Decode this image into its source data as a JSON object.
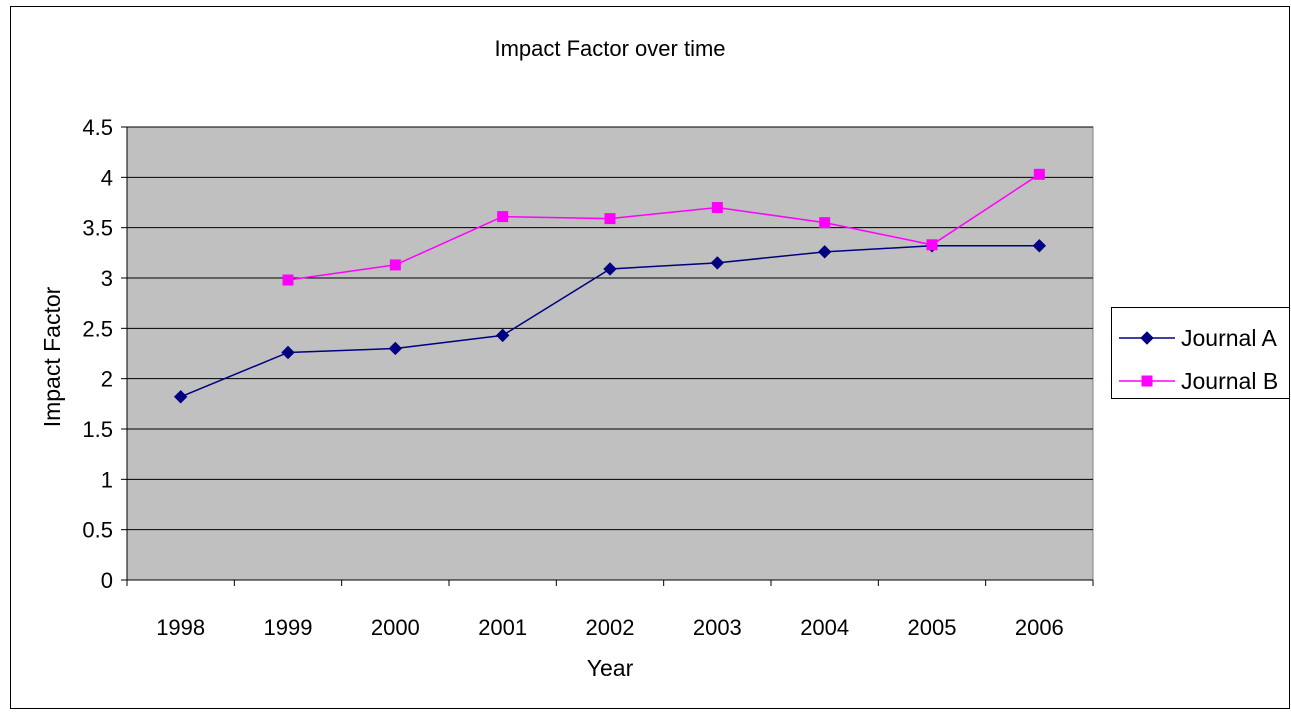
{
  "chart_data": {
    "type": "line",
    "title": "Impact Factor over time",
    "xlabel": "Year",
    "ylabel": "Impact Factor",
    "categories": [
      "1998",
      "1999",
      "2000",
      "2001",
      "2002",
      "2003",
      "2004",
      "2005",
      "2006"
    ],
    "series": [
      {
        "name": "Journal A",
        "color": "#000080",
        "marker": "diamond",
        "values": [
          1.82,
          2.26,
          2.3,
          2.43,
          3.09,
          3.15,
          3.26,
          3.32,
          3.32
        ]
      },
      {
        "name": "Journal B",
        "color": "#ff00ff",
        "marker": "square",
        "values": [
          null,
          2.98,
          3.13,
          3.61,
          3.59,
          3.7,
          3.55,
          3.33,
          4.03
        ]
      }
    ],
    "ylim": [
      0,
      4.5
    ],
    "yticks": [
      "0",
      "0.5",
      "1",
      "1.5",
      "2",
      "2.5",
      "3",
      "3.5",
      "4",
      "4.5"
    ],
    "ytick_values": [
      0,
      0.5,
      1,
      1.5,
      2,
      2.5,
      3,
      3.5,
      4,
      4.5
    ],
    "grid": "horizontal",
    "legend_position": "right",
    "plot_background": "#c0c0c0"
  }
}
